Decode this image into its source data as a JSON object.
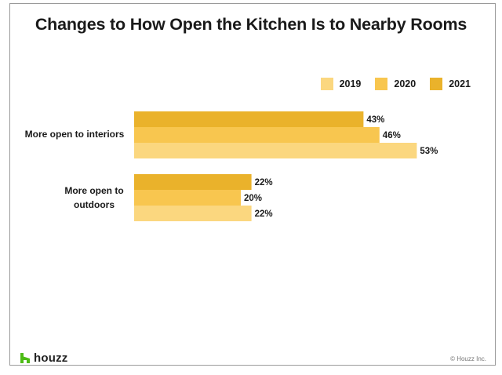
{
  "title": "Changes to How Open the Kitchen Is to Nearby Rooms",
  "brand": {
    "name": "houzz",
    "logo_icon": "houzz-logo-icon"
  },
  "copyright": "© Houzz Inc.",
  "colors": {
    "2019": "#fbd77f",
    "2020": "#f8c64f",
    "2021": "#eab22b"
  },
  "chart_data": {
    "type": "bar",
    "orientation": "horizontal",
    "categories": [
      "More open to interiors",
      "More open to outdoors"
    ],
    "series": [
      {
        "name": "2021",
        "values": [
          43,
          22
        ],
        "labels": [
          "43%",
          "22%"
        ]
      },
      {
        "name": "2020",
        "values": [
          46,
          20
        ],
        "labels": [
          "46%",
          "20%"
        ]
      },
      {
        "name": "2019",
        "values": [
          53,
          22
        ],
        "labels": [
          "53%",
          "22%"
        ]
      }
    ],
    "legend": {
      "position": "top-right",
      "order": [
        "2019",
        "2020",
        "2021"
      ]
    },
    "xlabel": "",
    "ylabel": "",
    "xlim": [
      0,
      100
    ],
    "grid": false
  }
}
